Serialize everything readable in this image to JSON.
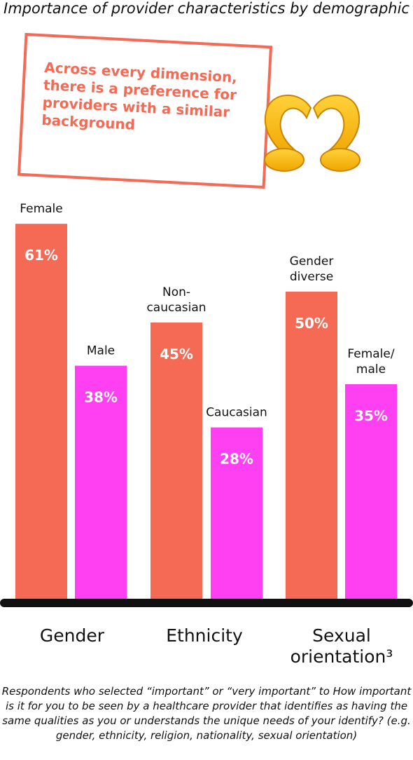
{
  "title": "Importance of provider characteristics by demographic",
  "callout": {
    "text": "Across every dimension, there is a preference for providers with a similar background",
    "icon": "heart-hands-icon"
  },
  "colors": {
    "primary_bar": "#f46a55",
    "secondary_bar": "#ff3ff2",
    "axis": "#111111",
    "accent_text": "#f46a55"
  },
  "chart_data": {
    "type": "bar",
    "title": "",
    "xlabel": "",
    "ylabel": "",
    "ylim": [
      0,
      100
    ],
    "categories": [
      "Gender",
      "Ethnicity",
      "Sexual orientation³"
    ],
    "series": [
      {
        "labels": [
          "Female",
          "Non-caucasian",
          "Gender diverse"
        ],
        "values": [
          61,
          45,
          50
        ],
        "data_labels": [
          "61%",
          "45%",
          "50%"
        ]
      },
      {
        "labels": [
          "Male",
          "Caucasian",
          "Female/ male"
        ],
        "values": [
          38,
          28,
          35
        ],
        "data_labels": [
          "38%",
          "28%",
          "35%"
        ]
      }
    ]
  },
  "footnote": "Respondents who selected “important” or “very important” to How important is it for you to be seen by a healthcare provider that identifies as having the same qualities as you or understands the unique needs of your identify? (e.g. gender, ethnicity, religion, nationality, sexual orientation)"
}
